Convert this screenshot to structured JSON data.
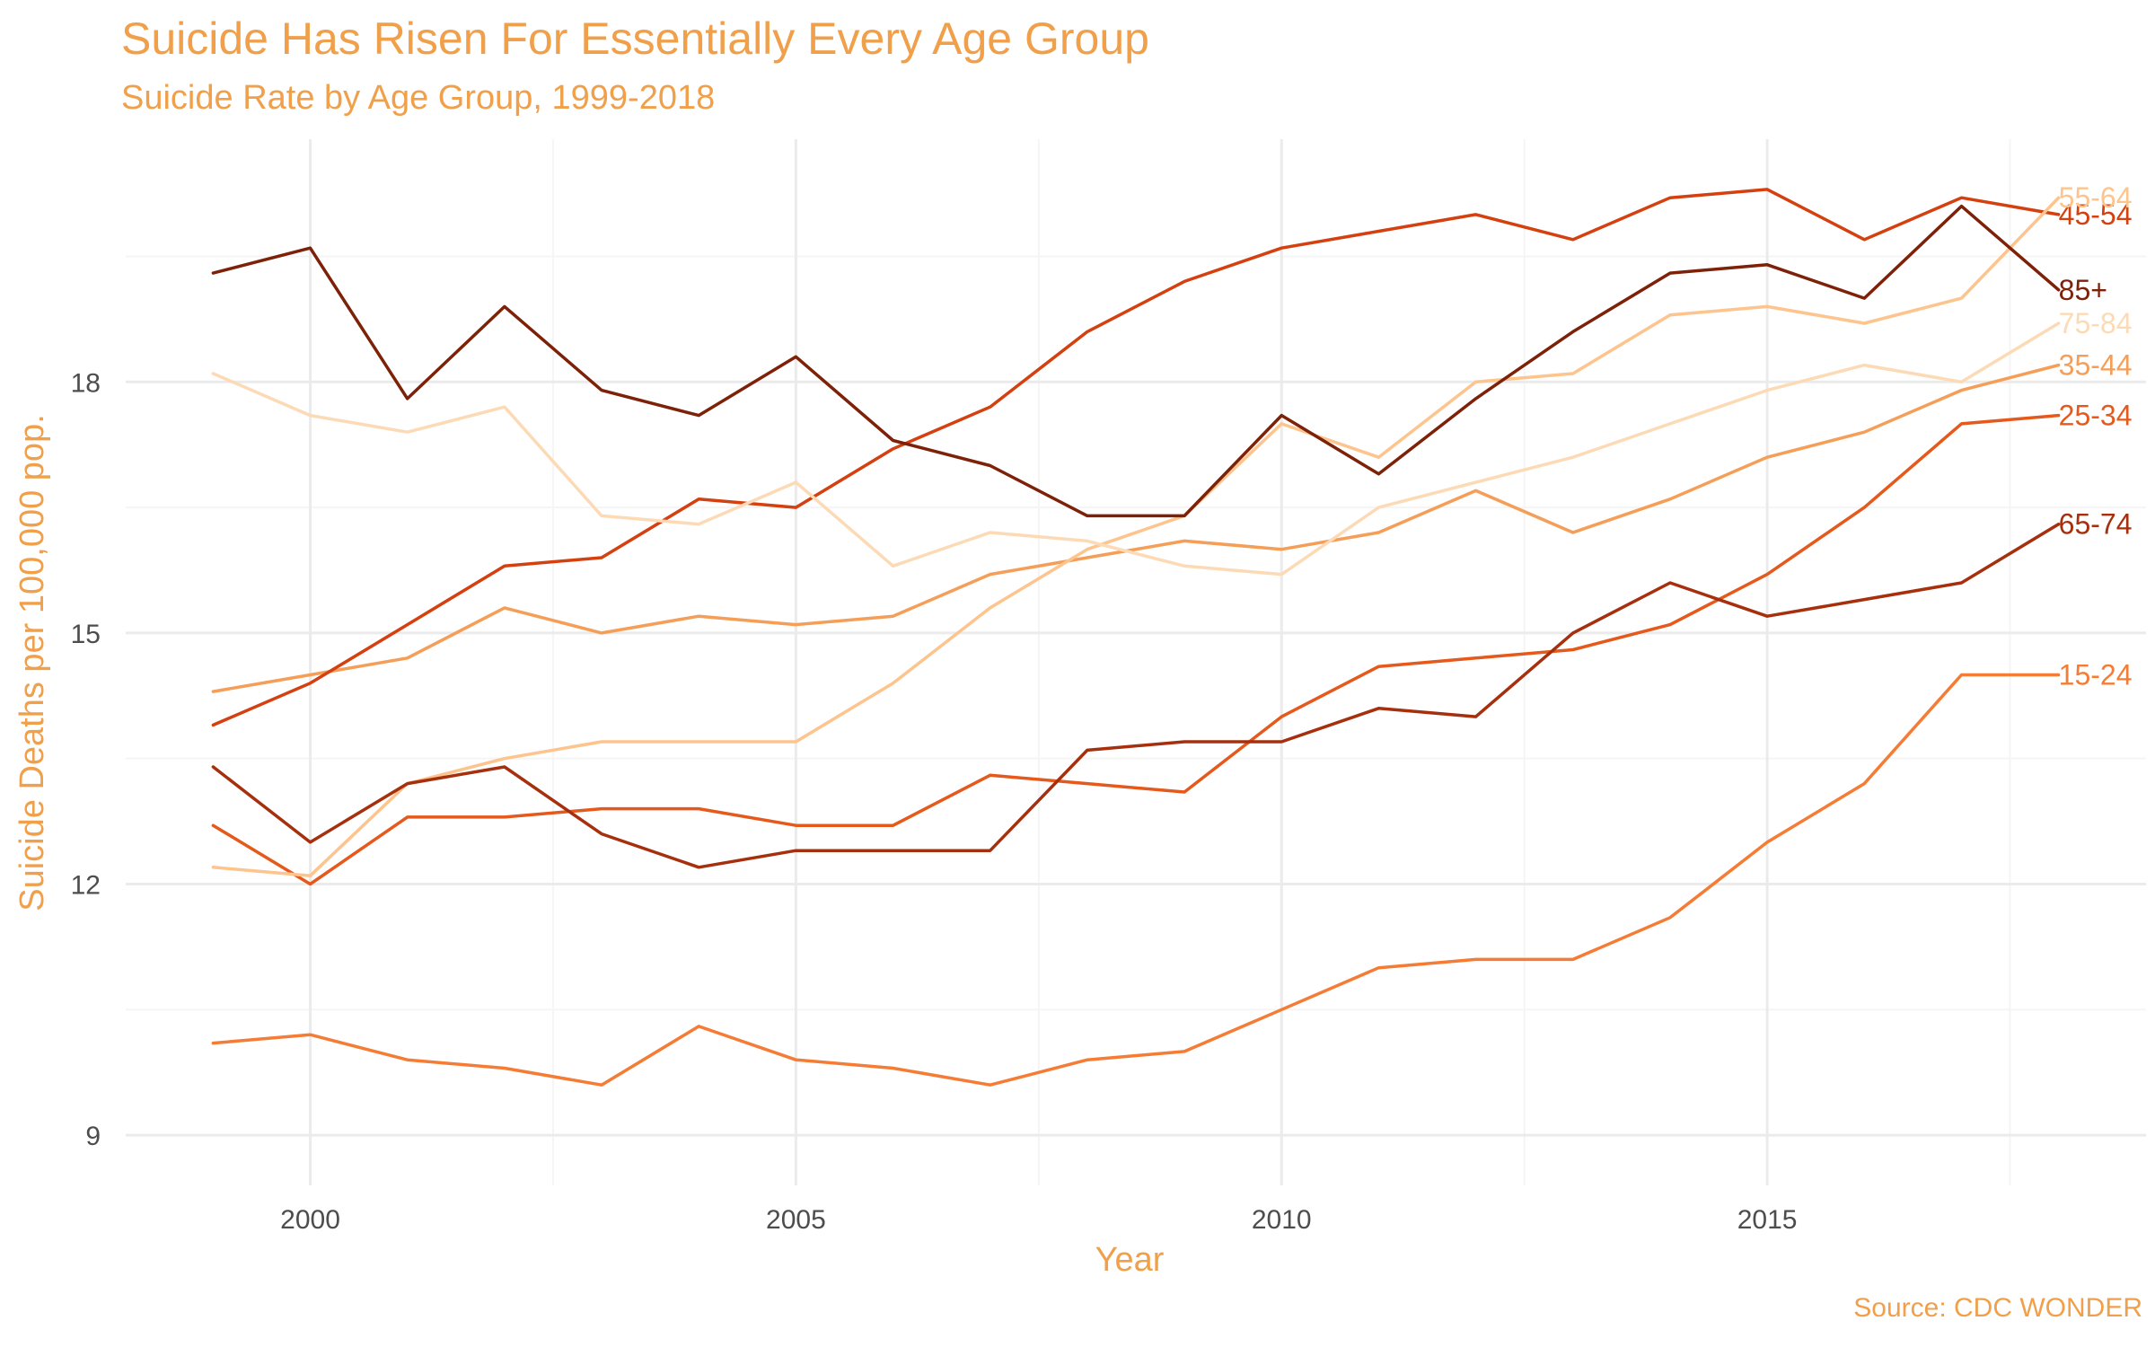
{
  "chart_data": {
    "type": "line",
    "title": "Suicide Has Risen For Essentially Every Age Group",
    "subtitle": "Suicide Rate by Age Group, 1999-2018",
    "caption": "Source: CDC WONDER",
    "xlabel": "Year",
    "ylabel": "Suicide Deaths per 100,000 pop.",
    "xlim": [
      1998.1,
      2018.9
    ],
    "ylim": [
      8.4,
      20.9
    ],
    "x_ticks": [
      2000,
      2005,
      2010,
      2015
    ],
    "y_ticks": [
      9,
      12,
      15,
      18
    ],
    "grid": true,
    "legend": "direct labels at right end of lines",
    "x": [
      1999,
      2000,
      2001,
      2002,
      2003,
      2004,
      2005,
      2006,
      2007,
      2008,
      2009,
      2010,
      2011,
      2012,
      2013,
      2014,
      2015,
      2016,
      2017,
      2018
    ],
    "series": [
      {
        "name": "15-24",
        "color": "#f47c35",
        "values": [
          10.1,
          10.2,
          9.9,
          9.8,
          9.6,
          10.3,
          9.9,
          9.8,
          9.6,
          9.9,
          10.0,
          10.5,
          11.0,
          11.1,
          11.1,
          11.6,
          12.5,
          13.2,
          14.5,
          14.5
        ]
      },
      {
        "name": "25-34",
        "color": "#e55a1c",
        "values": [
          12.7,
          12.0,
          12.8,
          12.8,
          12.9,
          12.9,
          12.7,
          12.7,
          13.3,
          13.2,
          13.1,
          14.0,
          14.6,
          14.7,
          14.8,
          15.1,
          15.7,
          16.5,
          17.5,
          17.6
        ]
      },
      {
        "name": "35-44",
        "color": "#f59e58",
        "values": [
          14.3,
          14.5,
          14.7,
          15.3,
          15.0,
          15.2,
          15.1,
          15.2,
          15.7,
          15.9,
          16.1,
          16.0,
          16.2,
          16.7,
          16.2,
          16.6,
          17.1,
          17.4,
          17.9,
          18.2
        ]
      },
      {
        "name": "45-54",
        "color": "#d4400f",
        "values": [
          13.9,
          14.4,
          15.1,
          15.8,
          15.9,
          16.6,
          16.5,
          17.2,
          17.7,
          18.6,
          19.2,
          19.6,
          19.8,
          20.0,
          19.7,
          20.2,
          20.3,
          19.7,
          20.2,
          20.0
        ]
      },
      {
        "name": "55-64",
        "color": "#fdc48d",
        "values": [
          12.2,
          12.1,
          13.2,
          13.5,
          13.7,
          13.7,
          13.7,
          14.4,
          15.3,
          16.0,
          16.4,
          17.5,
          17.1,
          18.0,
          18.1,
          18.8,
          18.9,
          18.7,
          19.0,
          20.2
        ]
      },
      {
        "name": "65-74",
        "color": "#a6300d",
        "values": [
          13.4,
          12.5,
          13.2,
          13.4,
          12.6,
          12.2,
          12.4,
          12.4,
          12.4,
          13.6,
          13.7,
          13.7,
          14.1,
          14.0,
          15.0,
          15.6,
          15.2,
          15.4,
          15.6,
          16.3
        ]
      },
      {
        "name": "75-84",
        "color": "#fddab6",
        "values": [
          18.1,
          17.6,
          17.4,
          17.7,
          16.4,
          16.3,
          16.8,
          15.8,
          16.2,
          16.1,
          15.8,
          15.7,
          16.5,
          16.8,
          17.1,
          17.5,
          17.9,
          18.2,
          18.0,
          18.7
        ]
      },
      {
        "name": "85+",
        "color": "#7d2108",
        "values": [
          19.3,
          19.6,
          17.8,
          18.9,
          17.9,
          17.6,
          18.3,
          17.3,
          17.0,
          16.4,
          16.4,
          17.6,
          16.9,
          17.8,
          18.6,
          19.3,
          19.4,
          19.0,
          20.1,
          19.1
        ]
      }
    ]
  }
}
